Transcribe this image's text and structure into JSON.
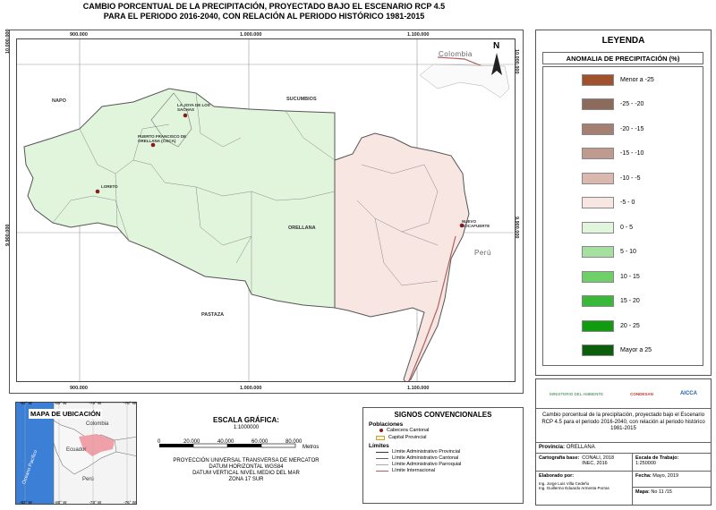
{
  "title_line1": "CAMBIO PORCENTUAL DE LA PRECIPITACIÓN, PROYECTADO BAJO EL ESCENARIO RCP 4.5",
  "title_line2": "PARA EL PERIODO 2016-2040, CON RELACIÓN AL PERIODO HISTÓRICO 1981-2015",
  "coords": {
    "top": [
      "900.000",
      "1.000.000",
      "1.100.000"
    ],
    "bottom": [
      "900.000",
      "1.000.000",
      "1.100.000"
    ],
    "left_top": "10.000.000",
    "left_mid": "9.900.000",
    "right_top": "10.000.000",
    "right_mid": "9.900.000"
  },
  "places": {
    "colombia": "Colombia",
    "peru": "Perú",
    "napo": "NAPO",
    "sucumbios": "SUCUMBIOS",
    "orellana": "ORELLANA",
    "pastaza": "PASTAZA",
    "joya": "LA JOYA DE LOS SACHAS",
    "puerto": "PUERTO FRANCISCO DE ORELLANA (COCA)",
    "loreto": "LORETO",
    "nuevo": "NUEVO ROCAFUERTE",
    "north": "N"
  },
  "legend": {
    "title": "LEYENDA",
    "subtitle": "ANOMALIA DE PRECIPITACIÓN (%)",
    "items": [
      {
        "label": "Menor a -25",
        "color": "#a0522d"
      },
      {
        "label": "-25 - -20",
        "color": "#8c6a5c"
      },
      {
        "label": "-20 - -15",
        "color": "#a57f72"
      },
      {
        "label": "-15 - -10",
        "color": "#bf9a8e"
      },
      {
        "label": "-10 - -5",
        "color": "#dab8ae"
      },
      {
        "label": "-5 - 0",
        "color": "#f8e6e2"
      },
      {
        "label": "0 - 5",
        "color": "#e0f5dc"
      },
      {
        "label": "5 - 10",
        "color": "#a6e0a0"
      },
      {
        "label": "10 - 15",
        "color": "#6fd06a"
      },
      {
        "label": "15 - 20",
        "color": "#3ab83a"
      },
      {
        "label": "20 - 25",
        "color": "#119b11"
      },
      {
        "label": "Mayor a 25",
        "color": "#0b5e0b"
      }
    ]
  },
  "location_map": {
    "title": "MAPA DE UBICACIÓN",
    "top_ticks": [
      "-82° W",
      "-80° W",
      "-78° W",
      "-76° W"
    ],
    "bottom_ticks": [
      "-82° W",
      "-80° W",
      "-78° W",
      "-76° W"
    ],
    "colombia": "Colombia",
    "ecuador": "Ecuador",
    "peru": "Perú",
    "ocean": "Oceano Pacifico"
  },
  "scale": {
    "title": "ESCALA GRÁFICA:",
    "ratio": "1:1000000",
    "ticks": [
      "0",
      "20.000",
      "40.000",
      "60.000",
      "80.000"
    ],
    "unit": "Metros",
    "projection": [
      "PROYECCIÓN UNIVERSAL TRANSVERSA DE MERCATOR",
      "DATUM HORIZONTAL WGS84",
      "DATUM VERTICAL NIVEL MEDIO DEL MAR",
      "ZONA 17 SUR"
    ]
  },
  "signos": {
    "title": "SIGNOS CONVENCIONALES",
    "poblaciones": "Poblaciones",
    "cabecera": "Cabecera Cantonal",
    "capital": "Capital Provincial",
    "limites": "Límites",
    "lim_prov": "Límite Administrativo Provincial",
    "lim_cant": "Límite Administrativo Cantonal",
    "lim_parr": "Límite Administrativo Parroquial",
    "lim_int": "Límite Internacional"
  },
  "info": {
    "logos": [
      "MINISTERIO DEL AMBIENTE",
      "CONDESAN",
      "AICCA"
    ],
    "description": "Cambio porcentual de la precipitación, proyectado bajo el Escenario RCP 4.5 para el periodo 2016-2040, con relación al periodo histórico 1981-2015",
    "provincia_label": "Provincia:",
    "provincia": "ORELLANA",
    "cartografia_label": "Cartografía base:",
    "cartografia": "CONALI, 2018 INEC, 2016",
    "escala_label": "Escala de Trabajo:",
    "escala": "1:250000",
    "elaborado_label": "Elaborado por:",
    "autores": [
      "Ing. Jorge Luis Villa Cedeño",
      "Ing. Guillermo Eduardo Armenta Porras"
    ],
    "fecha_label": "Fecha:",
    "fecha": "Mayo, 2019",
    "mapa_label": "Mapa:",
    "mapa": "No 11 /15"
  }
}
